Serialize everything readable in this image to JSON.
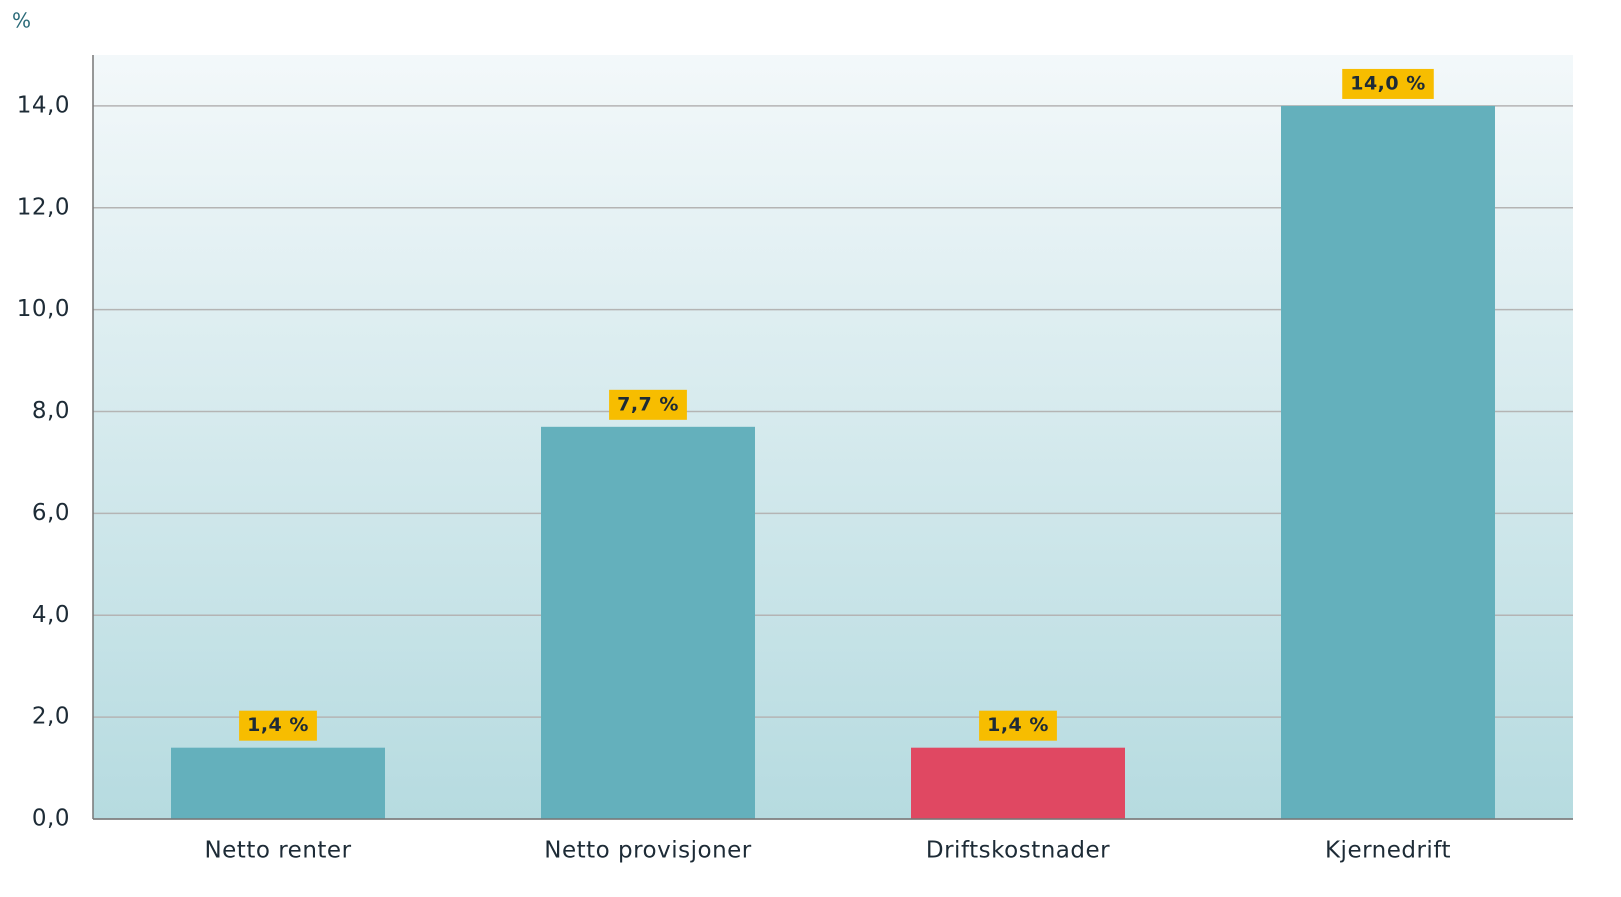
{
  "chart_data": {
    "type": "bar",
    "y_label": "%",
    "categories": [
      "Netto renter",
      "Netto provisjoner",
      "Driftskostnader",
      "Kjernedrift"
    ],
    "values": [
      1.4,
      7.7,
      1.4,
      14.0
    ],
    "value_labels": [
      "1,4 %",
      "7,7 %",
      "1,4 %",
      "14,0 %"
    ],
    "colors": [
      "#64b0bc",
      "#64b0bc",
      "#e04862",
      "#64b0bc"
    ],
    "ylim": [
      0,
      15
    ],
    "yticks": [
      {
        "value": 0,
        "label": "0,0"
      },
      {
        "value": 2,
        "label": "2,0"
      },
      {
        "value": 4,
        "label": "4,0"
      },
      {
        "value": 6,
        "label": "6,0"
      },
      {
        "value": 8,
        "label": "8,0"
      },
      {
        "value": 10,
        "label": "10,0"
      },
      {
        "value": 12,
        "label": "12,0"
      },
      {
        "value": 14,
        "label": "14,0"
      }
    ],
    "grid": true
  }
}
